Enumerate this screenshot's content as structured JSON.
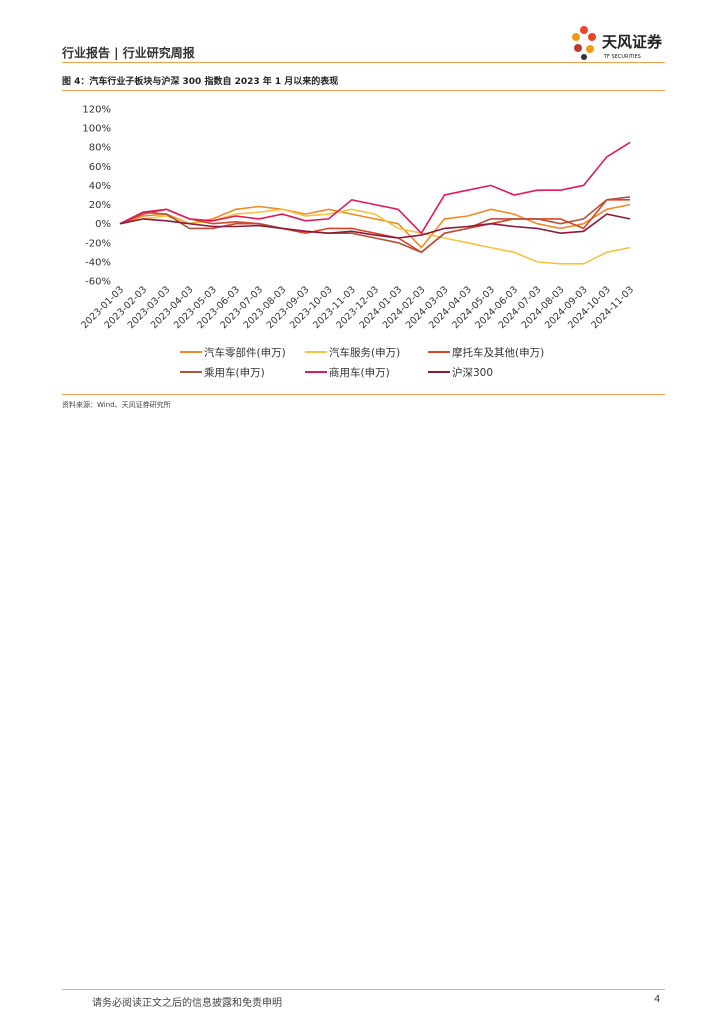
{
  "header": {
    "title": "行业报告 | 行业研究周报",
    "logo_name": "天风证券",
    "logo_sub": "TF SECURITIES"
  },
  "figure": {
    "caption": "图 4：汽车行业子板块与沪深 300 指数自 2023 年 1 月以来的表现"
  },
  "chart_data": {
    "type": "line",
    "categories": [
      "2023-01-03",
      "2023-02-03",
      "2023-03-03",
      "2023-04-03",
      "2023-05-03",
      "2023-06-03",
      "2023-07-03",
      "2023-08-03",
      "2023-09-03",
      "2023-10-03",
      "2023-11-03",
      "2023-12-03",
      "2024-01-03",
      "2024-02-03",
      "2024-03-03",
      "2024-04-03",
      "2024-05-03",
      "2024-06-03",
      "2024-07-03",
      "2024-08-03",
      "2024-09-03",
      "2024-10-03",
      "2024-11-03"
    ],
    "ylim": [
      -60,
      120
    ],
    "yticks": [
      {
        "value": -60,
        "label": "-60%"
      },
      {
        "value": -40,
        "label": "-40%"
      },
      {
        "value": -20,
        "label": "-20%"
      },
      {
        "value": 0,
        "label": "0%"
      },
      {
        "value": 20,
        "label": "20%"
      },
      {
        "value": 40,
        "label": "40%"
      },
      {
        "value": 60,
        "label": "60%"
      },
      {
        "value": 80,
        "label": "80%"
      },
      {
        "value": 100,
        "label": "100%"
      },
      {
        "value": 120,
        "label": "120%"
      }
    ],
    "series": [
      {
        "name": "汽车零部件(申万)",
        "color": "#f08a24",
        "values": [
          0,
          8,
          10,
          0,
          5,
          15,
          18,
          15,
          10,
          15,
          10,
          5,
          0,
          -25,
          5,
          8,
          15,
          10,
          0,
          -5,
          0,
          15,
          20
        ]
      },
      {
        "name": "汽车服务(申万)",
        "color": "#f5c342",
        "values": [
          0,
          5,
          8,
          0,
          3,
          10,
          12,
          15,
          8,
          10,
          15,
          10,
          -5,
          -10,
          -15,
          -20,
          -25,
          -30,
          -40,
          -42,
          -42,
          -30,
          -25
        ]
      },
      {
        "name": "摩托车及其他(申万)",
        "color": "#d9462a",
        "values": [
          0,
          10,
          15,
          5,
          0,
          2,
          0,
          -5,
          -10,
          -5,
          -5,
          -10,
          -15,
          -30,
          -10,
          -5,
          0,
          5,
          5,
          5,
          -5,
          25,
          25
        ]
      },
      {
        "name": "乘用车(申万)",
        "color": "#b5503a",
        "values": [
          0,
          12,
          10,
          -5,
          -5,
          0,
          0,
          -5,
          -8,
          -10,
          -10,
          -15,
          -20,
          -30,
          -10,
          -5,
          5,
          5,
          5,
          0,
          5,
          25,
          28
        ]
      },
      {
        "name": "商用车(申万)",
        "color": "#e0195a",
        "values": [
          0,
          12,
          15,
          5,
          3,
          8,
          5,
          10,
          3,
          5,
          25,
          20,
          15,
          -10,
          30,
          35,
          40,
          30,
          35,
          35,
          40,
          70,
          85
        ]
      },
      {
        "name": "沪深300",
        "color": "#8b1a3a",
        "values": [
          0,
          5,
          3,
          0,
          -3,
          -3,
          -2,
          -5,
          -8,
          -10,
          -8,
          -12,
          -15,
          -12,
          -5,
          -3,
          0,
          -3,
          -5,
          -10,
          -8,
          10,
          5
        ]
      }
    ]
  },
  "source": "资料来源：Wind、天风证券研究所",
  "footer": {
    "disclaimer": "请务必阅读正文之后的信息披露和免责申明",
    "page_number": "4"
  }
}
